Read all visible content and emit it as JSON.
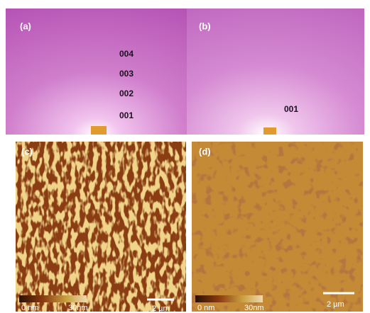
{
  "panels": [
    {
      "label": "(a)",
      "annotations": [
        "004",
        "003",
        "002",
        "001"
      ]
    },
    {
      "label": "(b)",
      "annotations": [
        "001"
      ]
    },
    {
      "label": "(c)",
      "scale": {
        "min": "0 nm",
        "max": "30nm",
        "bar": "2 µm"
      }
    },
    {
      "label": "(d)",
      "scale": {
        "min": "0 nm",
        "max": "30nm",
        "bar": "2 µm"
      }
    }
  ]
}
